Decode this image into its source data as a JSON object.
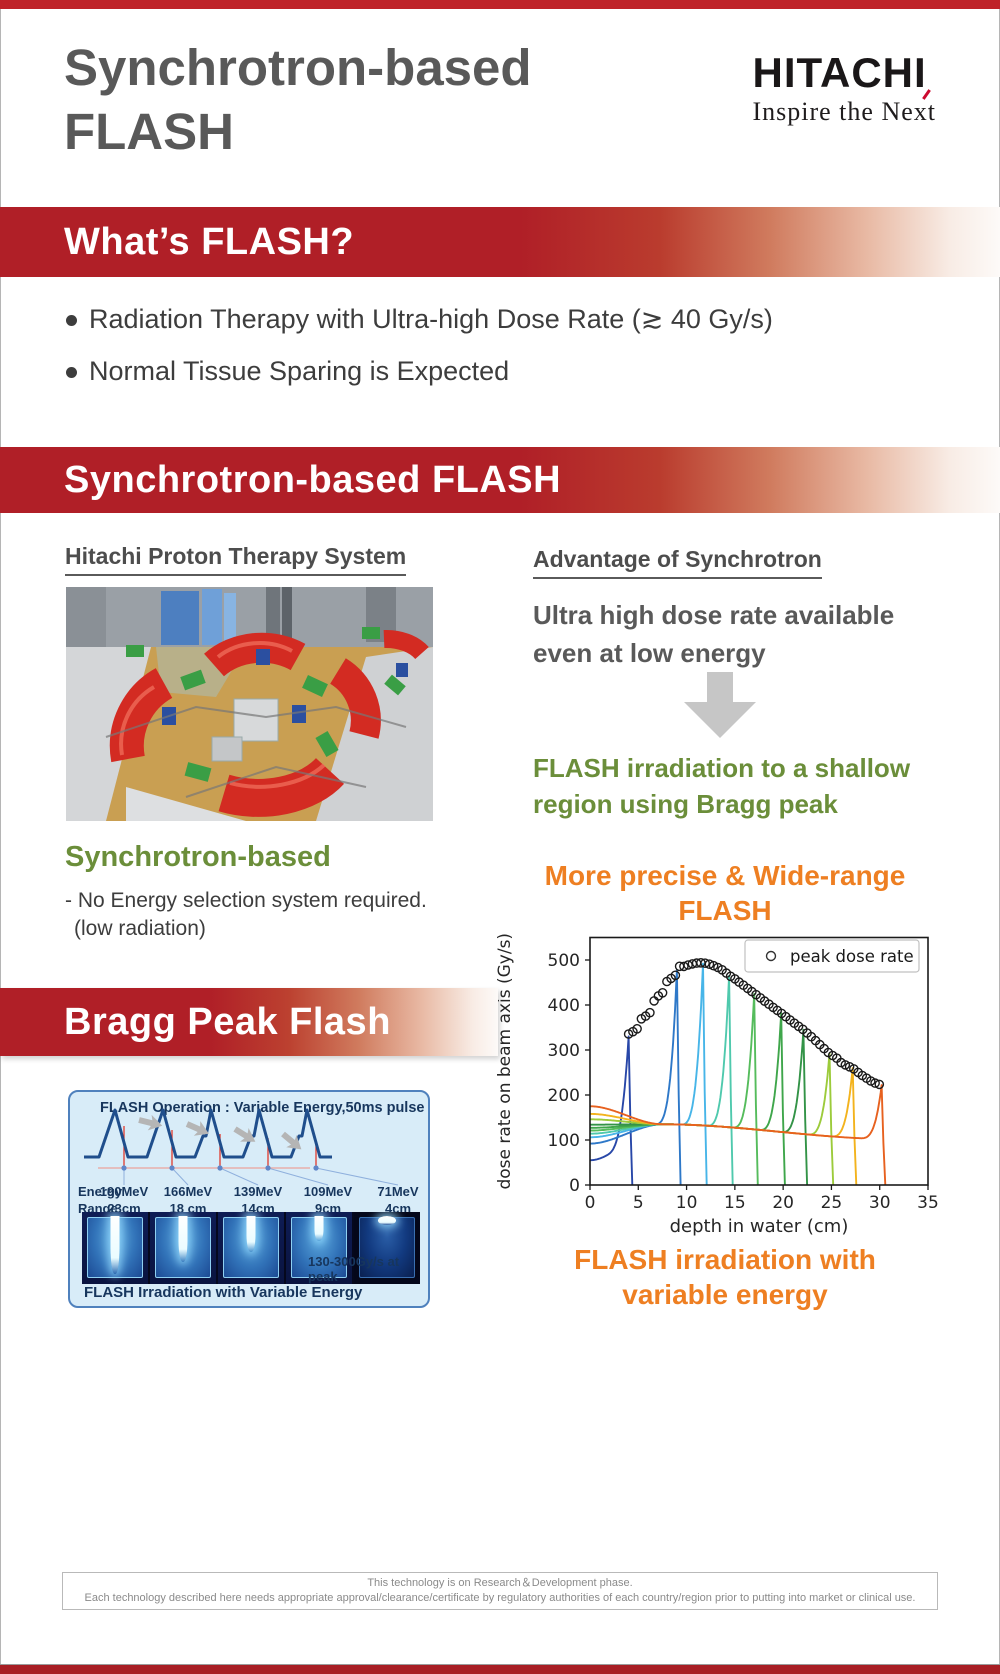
{
  "header": {
    "title_line1": "Synchrotron-based",
    "title_line2": "FLASH",
    "logo_name": "HITACHI",
    "logo_tagline": "Inspire the Next"
  },
  "whats_flash": {
    "banner_title": "What’s FLASH?",
    "bullets": [
      "Radiation Therapy with Ultra-high Dose Rate (≳ 40 Gy/s)",
      "Normal Tissue Sparing is Expected"
    ]
  },
  "synchrotron_flash": {
    "banner_title": "Synchrotron-based FLASH",
    "left": {
      "heading": "Hitachi Proton Therapy System",
      "photo_label": "synchrotron accelerator room photo",
      "subheading": "Synchrotron-based",
      "note_line1": "- No Energy selection system required.",
      "note_line2": "(low radiation)"
    },
    "right": {
      "heading": "Advantage of Synchrotron",
      "statement_line1": "Ultra high dose rate available",
      "statement_line2": "even at low energy",
      "conclusion_line1": "FLASH irradiation to a shallow",
      "conclusion_line2": "region using Bragg peak",
      "chart_title_line1": "More precise & Wide-range",
      "chart_title_line2": "FLASH",
      "chart_caption_line1": "FLASH irradiation with",
      "chart_caption_line2": "variable energy"
    }
  },
  "bragg_peak_flash": {
    "banner_title": "Bragg Peak Flash",
    "diagram": {
      "title": "FLASH Operation : Variable Energy,50ms pulse",
      "row_label_energy": "Energy",
      "row_label_range": "Range",
      "columns": [
        {
          "energy": "190MeV",
          "range": "23cm",
          "beam_length_pct": 80
        },
        {
          "energy": "166MeV",
          "range": "18 cm",
          "beam_length_pct": 64
        },
        {
          "energy": "139MeV",
          "range": "14cm",
          "beam_length_pct": 50
        },
        {
          "energy": "109MeV",
          "range": "9cm",
          "beam_length_pct": 34
        },
        {
          "energy": "71MeV",
          "range": "4cm",
          "beam_length_pct": 12
        }
      ],
      "footer_left": "FLASH Irradiation with Variable Energy",
      "footer_right": "130-300Gy/s at peak"
    }
  },
  "chart_data": {
    "type": "line",
    "title": "More precise & Wide-range FLASH",
    "xlabel": "depth in water (cm)",
    "ylabel": "dose rate on beam axis (Gy/s)",
    "xlim": [
      0,
      35
    ],
    "ylim": [
      0,
      550
    ],
    "xticks": [
      0,
      5,
      10,
      15,
      20,
      25,
      30,
      35
    ],
    "yticks": [
      0,
      100,
      200,
      300,
      400,
      500
    ],
    "grid": false,
    "legend": {
      "label": "peak dose rate",
      "marker": "open-circle",
      "position": "top-right"
    },
    "series": [
      {
        "name": "Bragg peak, range 4 cm",
        "color": "#2847a8",
        "entrance_dose_rate_gys": 55,
        "peak_depth_cm": 4.0,
        "peak_dose_rate_gys": 330
      },
      {
        "name": "Bragg peak, range 9 cm",
        "color": "#2e78c8",
        "entrance_dose_rate_gys": 92,
        "peak_depth_cm": 9.0,
        "peak_dose_rate_gys": 478
      },
      {
        "name": "Bragg peak, range 12 cm",
        "color": "#47b5e8",
        "entrance_dose_rate_gys": 106,
        "peak_depth_cm": 11.7,
        "peak_dose_rate_gys": 492
      },
      {
        "name": "Bragg peak, range 14 cm",
        "color": "#4fc9ad",
        "entrance_dose_rate_gys": 114,
        "peak_depth_cm": 14.4,
        "peak_dose_rate_gys": 465
      },
      {
        "name": "Bragg peak, range 17 cm",
        "color": "#55bc5c",
        "entrance_dose_rate_gys": 121,
        "peak_depth_cm": 17.0,
        "peak_dose_rate_gys": 425
      },
      {
        "name": "Bragg peak, range 20 cm",
        "color": "#3fa64b",
        "entrance_dose_rate_gys": 127,
        "peak_depth_cm": 19.8,
        "peak_dose_rate_gys": 382
      },
      {
        "name": "Bragg peak, range 22 cm",
        "color": "#339347",
        "entrance_dose_rate_gys": 134,
        "peak_depth_cm": 22.1,
        "peak_dose_rate_gys": 345
      },
      {
        "name": "Bragg peak, range 25 cm",
        "color": "#9ccb3b",
        "entrance_dose_rate_gys": 146,
        "peak_depth_cm": 24.8,
        "peak_dose_rate_gys": 292
      },
      {
        "name": "Bragg peak, range 27 cm",
        "color": "#f3b31d",
        "entrance_dose_rate_gys": 158,
        "peak_depth_cm": 27.2,
        "peak_dose_rate_gys": 260
      },
      {
        "name": "Bragg peak, range 30 cm",
        "color": "#e7611f",
        "entrance_dose_rate_gys": 175,
        "peak_depth_cm": 30.2,
        "peak_dose_rate_gys": 222
      }
    ],
    "peak_dose_rate_points": [
      [
        4,
        330
      ],
      [
        4.5,
        342
      ],
      [
        5,
        356
      ],
      [
        5.5,
        368
      ],
      [
        6,
        382
      ],
      [
        6.5,
        398
      ],
      [
        7,
        418
      ],
      [
        7.5,
        432
      ],
      [
        8,
        448
      ],
      [
        8.5,
        462
      ],
      [
        9,
        476
      ],
      [
        9.5,
        484
      ],
      [
        10,
        488
      ],
      [
        10.5,
        491
      ],
      [
        11,
        493
      ],
      [
        11.7,
        494
      ],
      [
        12.3,
        491
      ],
      [
        13,
        486
      ],
      [
        13.7,
        478
      ],
      [
        14.4,
        466
      ],
      [
        15,
        458
      ],
      [
        16,
        442
      ],
      [
        17,
        426
      ],
      [
        18,
        410
      ],
      [
        19,
        394
      ],
      [
        19.8,
        382
      ],
      [
        21,
        362
      ],
      [
        22.1,
        345
      ],
      [
        23,
        328
      ],
      [
        24,
        308
      ],
      [
        24.8,
        292
      ],
      [
        25.5,
        283
      ],
      [
        26,
        272
      ],
      [
        26.6,
        265
      ],
      [
        27.2,
        260
      ],
      [
        28,
        246
      ],
      [
        28.6,
        238
      ],
      [
        29.3,
        228
      ],
      [
        30.2,
        222
      ]
    ]
  },
  "disclaimer": {
    "line1": "This technology is on Research＆Development phase.",
    "line2": "Each technology described here needs appropriate approval/clearance/certificate by regulatory authorities of each country/region prior to putting into market or clinical use."
  },
  "colors": {
    "banner_red": "#b01f27",
    "top_bar_red": "#bf2329",
    "heading_gray": "#595959",
    "body_text": "#3f3f3f",
    "green_accent": "#6b8e3a",
    "orange_accent": "#ee7f22",
    "diagram_navy": "#17365d",
    "diagram_box_bg": "#d8ecf8",
    "diagram_box_border": "#4f81bd",
    "hitachi_logo_red": "#cc0a2f"
  }
}
